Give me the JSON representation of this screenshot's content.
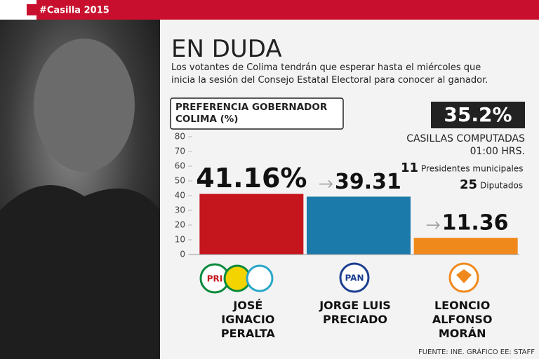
{
  "header": {
    "tag": "#Casilla 2015"
  },
  "headline": "EN DUDA",
  "summary": "Los votantes de Colima tendrán que esperar hasta el miércoles que inicia la sesión del Consejo Estatal Electoral para conocer al ganador.",
  "stats": {
    "percent": "35.2%",
    "label": "CASILLAS COMPUTADAS",
    "time": "01:00 HRS.",
    "items": [
      {
        "count": "11",
        "label": "Presidentes municipales"
      },
      {
        "count": "25",
        "label": "Diputados"
      }
    ]
  },
  "logos": {
    "pri": "PRI",
    "pan": "PAN"
  },
  "source": "FUENTE: INE. GRÁFICO EE: STAFF",
  "chart_data": {
    "type": "bar",
    "title": "PREFERENCIA GOBERNADOR COLIMA (%)",
    "categories": [
      "JOSÉ IGNACIO PERALTA",
      "JORGE LUIS PRECIADO",
      "LEONCIO ALFONSO MORÁN"
    ],
    "values": [
      41.16,
      39.31,
      11.36
    ],
    "value_labels": [
      "41.16%",
      "39.31",
      "11.36"
    ],
    "colors": [
      "#c4161c",
      "#1b7aaa",
      "#f0891c"
    ],
    "ylim": [
      0,
      80
    ],
    "yticks": [
      0,
      10,
      20,
      30,
      40,
      50,
      60,
      70,
      80
    ]
  }
}
